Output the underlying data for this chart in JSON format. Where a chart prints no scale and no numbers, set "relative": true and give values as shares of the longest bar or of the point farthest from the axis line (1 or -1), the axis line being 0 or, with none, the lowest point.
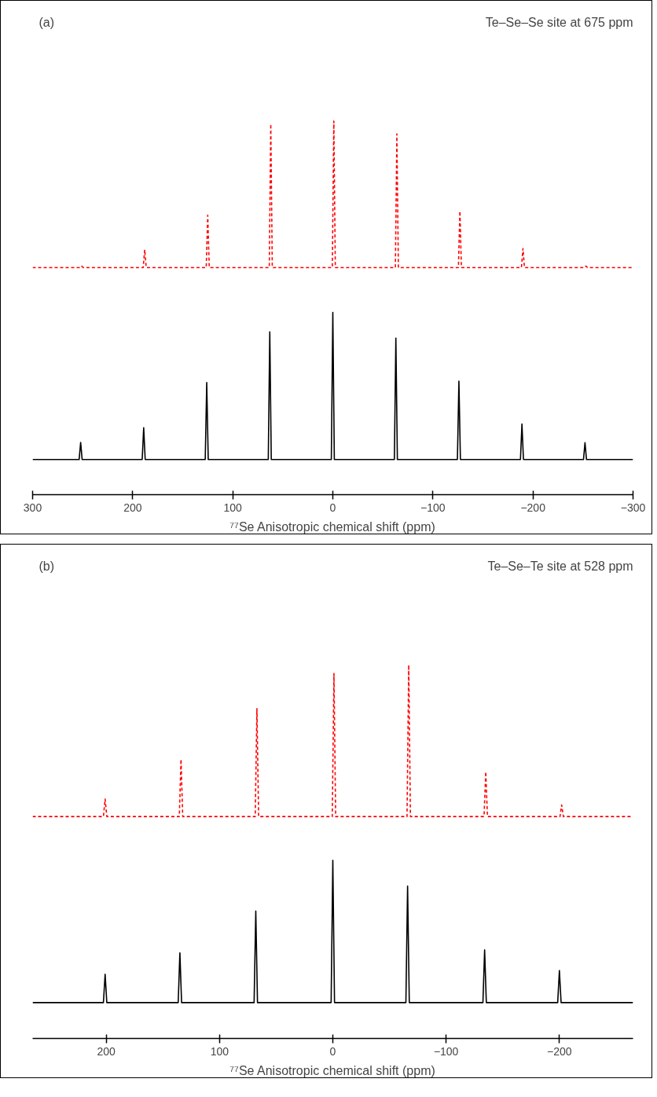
{
  "chart_data": [
    {
      "type": "line",
      "title": "(a)",
      "annotations": [
        "Te–Se–Se site at 675 ppm"
      ],
      "xlabel": "⁷⁷Se Anisotropic chemical shift (ppm)",
      "relative": true,
      "xlim": [
        300,
        -300
      ],
      "xticks": [
        300,
        200,
        100,
        0,
        -100,
        -200,
        -300
      ],
      "grid": false,
      "marker": "none",
      "tick_labels": "x",
      "series": [
        {
          "color": "#ff0000",
          "line_style": "dashed",
          "x": [
            300,
            252.5,
            251,
            249.5,
            189.5,
            188,
            186.5,
            126.5,
            125,
            123.5,
            63.5,
            62,
            60.5,
            0.5,
            -1,
            -2.5,
            -62.5,
            -64,
            -65.5,
            -125.5,
            -127,
            -128.5,
            -188.5,
            -190,
            -191.5,
            -251.5,
            -253,
            -254.5,
            -300
          ],
          "values": [
            0.608,
            0.608,
            0.612,
            0.608,
            0.608,
            0.656,
            0.608,
            0.608,
            0.748,
            0.608,
            0.608,
            0.992,
            0.608,
            0.608,
            1.0,
            0.608,
            0.608,
            0.966,
            0.608,
            0.608,
            0.759,
            0.608,
            0.608,
            0.659,
            0.608,
            0.608,
            0.612,
            0.608,
            0.608
          ]
        },
        {
          "color": "#000000",
          "line_style": "solid",
          "x": [
            300,
            253.5,
            252,
            250.5,
            190.5,
            189,
            187.5,
            127.5,
            126,
            124.5,
            64.5,
            63,
            61.5,
            1.5,
            0,
            -1.5,
            -61.5,
            -63,
            -64.5,
            -124.5,
            -126,
            -127.5,
            -187.5,
            -189,
            -190.5,
            -250.5,
            -252,
            -253.5,
            -300
          ],
          "values": [
            0.094,
            0.094,
            0.14,
            0.094,
            0.094,
            0.179,
            0.094,
            0.094,
            0.3,
            0.094,
            0.094,
            0.436,
            0.094,
            0.094,
            0.488,
            0.094,
            0.094,
            0.419,
            0.094,
            0.094,
            0.304,
            0.094,
            0.094,
            0.189,
            0.094,
            0.094,
            0.139,
            0.094,
            0.094
          ]
        }
      ]
    },
    {
      "type": "line",
      "title": "(b)",
      "annotations": [
        "Te–Se–Te site at 528 ppm"
      ],
      "xlabel": "⁷⁷Se Anisotropic chemical shift (ppm)",
      "relative": true,
      "xlim": [
        265,
        -265
      ],
      "xticks": [
        200,
        100,
        0,
        -100,
        -200
      ],
      "grid": false,
      "marker": "none",
      "tick_labels": "x",
      "series": [
        {
          "color": "#ff0000",
          "line_style": "dashed",
          "x": [
            265,
            202.5,
            201,
            199.5,
            135.5,
            134,
            132.5,
            68.5,
            67,
            65.5,
            0.5,
            -1,
            -2.5,
            -65.5,
            -67,
            -68.5,
            -133.5,
            -135,
            -136.5,
            -200.5,
            -202,
            -203.5,
            -265
          ],
          "values": [
            0.594,
            0.594,
            0.641,
            0.594,
            0.594,
            0.747,
            0.594,
            0.594,
            0.883,
            0.594,
            0.594,
            0.977,
            0.594,
            0.594,
            1.0,
            0.594,
            0.594,
            0.714,
            0.594,
            0.594,
            0.625,
            0.594,
            0.594
          ]
        },
        {
          "color": "#000000",
          "line_style": "solid",
          "x": [
            265,
            202.5,
            201,
            199.5,
            136.5,
            135,
            133.5,
            69.5,
            68,
            66.5,
            1.5,
            0,
            -1.5,
            -64.5,
            -66,
            -67.5,
            -132.5,
            -134,
            -135.5,
            -198.5,
            -200,
            -201.5,
            -265
          ],
          "values": [
            0.096,
            0.096,
            0.172,
            0.096,
            0.096,
            0.229,
            0.096,
            0.096,
            0.341,
            0.096,
            0.096,
            0.477,
            0.096,
            0.096,
            0.408,
            0.096,
            0.096,
            0.237,
            0.096,
            0.096,
            0.182,
            0.096,
            0.096
          ]
        }
      ]
    }
  ]
}
